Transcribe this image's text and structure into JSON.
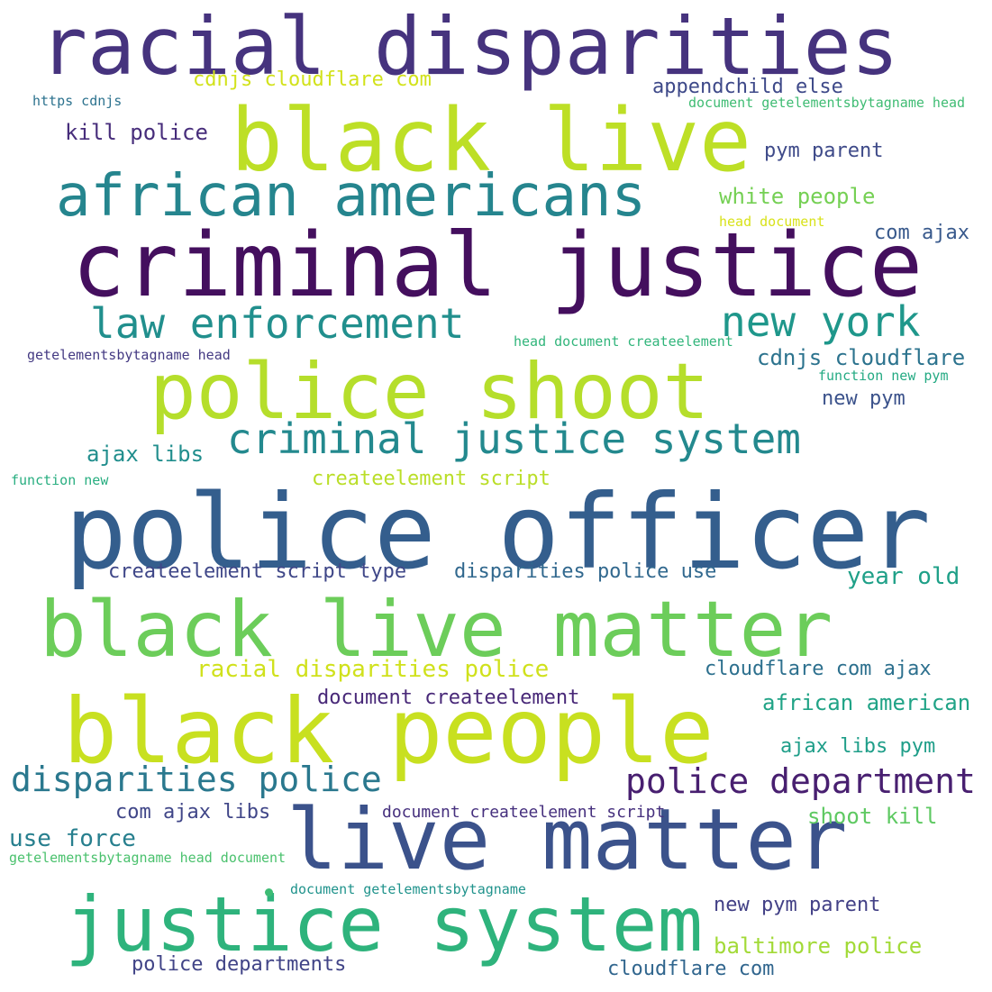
{
  "words": [
    {
      "text": "racial disparities",
      "color": "#46337e"
    },
    {
      "text": "black live",
      "color": "#bddf26"
    },
    {
      "text": "african americans",
      "color": "#25858e"
    },
    {
      "text": "criminal justice",
      "color": "#440f5e"
    },
    {
      "text": "law enforcement",
      "color": "#218f8d"
    },
    {
      "text": "new york",
      "color": "#1f978b"
    },
    {
      "text": "police shoot",
      "color": "#b5de2b"
    },
    {
      "text": "criminal justice system",
      "color": "#23898e"
    },
    {
      "text": "police officer",
      "color": "#345e8d"
    },
    {
      "text": "black live matter",
      "color": "#6ccd5a"
    },
    {
      "text": "black people",
      "color": "#c8e020"
    },
    {
      "text": "live matter",
      "color": "#3b528b"
    },
    {
      "text": "justice system",
      "color": "#2eb37c"
    },
    {
      "text": "disparities police",
      "color": "#2a788e"
    },
    {
      "text": "police department",
      "color": "#481f70"
    },
    {
      "text": "cdnjs cloudflare com",
      "color": "#d2e21b"
    },
    {
      "text": "appendchild else",
      "color": "#3e4989"
    },
    {
      "text": "document getelementsbytagname head",
      "color": "#3fbc73"
    },
    {
      "text": "https cdnjs",
      "color": "#2c728e"
    },
    {
      "text": "kill police",
      "color": "#472d7b"
    },
    {
      "text": "pym parent",
      "color": "#3e4a89"
    },
    {
      "text": "white people",
      "color": "#75d054"
    },
    {
      "text": "head document",
      "color": "#d8e219"
    },
    {
      "text": "com ajax",
      "color": "#38598c"
    },
    {
      "text": "head document createelement",
      "color": "#31b57b"
    },
    {
      "text": "getelementsbytagname head",
      "color": "#443a83"
    },
    {
      "text": "cdnjs cloudflare",
      "color": "#2c738e"
    },
    {
      "text": "function new pym",
      "color": "#24aa83"
    },
    {
      "text": "new pym",
      "color": "#3b528b"
    },
    {
      "text": "ajax libs",
      "color": "#218e8d"
    },
    {
      "text": "createelement script",
      "color": "#bade28"
    },
    {
      "text": "function new",
      "color": "#28ae80"
    },
    {
      "text": "createelement script type",
      "color": "#3f4788"
    },
    {
      "text": "disparities police use",
      "color": "#31688e"
    },
    {
      "text": "year old",
      "color": "#1fa088"
    },
    {
      "text": "racial disparities police",
      "color": "#d0e11c"
    },
    {
      "text": "cloudflare com ajax",
      "color": "#2d708e"
    },
    {
      "text": "document createelement",
      "color": "#482878"
    },
    {
      "text": "african american",
      "color": "#20a386"
    },
    {
      "text": "ajax libs pym",
      "color": "#1f9e89"
    },
    {
      "text": "com ajax libs",
      "color": "#404688"
    },
    {
      "text": "document createelement script",
      "color": "#46307e"
    },
    {
      "text": "shoot kill",
      "color": "#5ec962"
    },
    {
      "text": "use force",
      "color": "#277f8e"
    },
    {
      "text": "getelementsbytagname head document",
      "color": "#4ac16d"
    },
    {
      "text": "document getelementsbytagname",
      "color": "#20938c"
    },
    {
      "text": "new pym parent",
      "color": "#424086"
    },
    {
      "text": "baltimore police",
      "color": "#a2da37"
    },
    {
      "text": "police departments",
      "color": "#414487"
    },
    {
      "text": "cloudflare com",
      "color": "#31668e"
    }
  ],
  "dot_color": "#3dbc74"
}
